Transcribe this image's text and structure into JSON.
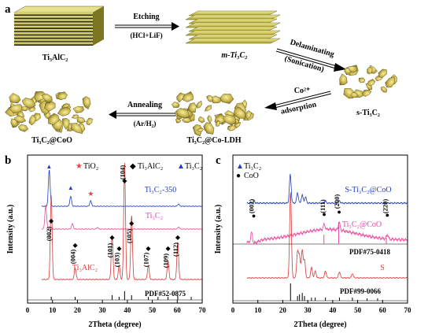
{
  "panel_a": {
    "label": "a",
    "start": "Ti₃AlC₂",
    "step1_top": "Etching",
    "step1_bottom": "(HCl+LiF)",
    "m_product": "m-Ti₃C₂",
    "step2_top": "Delaminating",
    "step2_bottom": "(Sonication)",
    "s_product": "s-Ti₃C₂",
    "step3_top": "Co²⁺",
    "step3_bottom": "adsorption",
    "ldh_product": "Ti₃C₂@Co-LDH",
    "step4_top": "Annealing",
    "step4_bottom": "(Ar/H₂)",
    "final_product": "Ti₃C₂@CoO"
  },
  "chart_data": [
    {
      "panel": "b",
      "type": "line",
      "xlabel": "2Theta (degree)",
      "ylabel": "Intensity (a.u.)",
      "xlim": [
        0,
        70
      ],
      "xticks": [
        "0",
        "10",
        "20",
        "30",
        "40",
        "50",
        "60",
        "70"
      ],
      "legend": [
        {
          "marker": "★",
          "label": "TiO₂",
          "color": "#e8463c"
        },
        {
          "marker": "◆",
          "label": "Ti₃AlC₂",
          "color": "#000000"
        },
        {
          "marker": "▲",
          "label": "Ti₃C₂",
          "color": "#1f3cc4"
        }
      ],
      "series": [
        {
          "name": "Ti₃C₂-350",
          "color": "#1f3cc4",
          "peaks": [
            [
              8.7,
              0.8
            ],
            [
              17.3,
              0.22
            ],
            [
              25.3,
              0.12
            ],
            [
              60.5,
              0.05
            ]
          ]
        },
        {
          "name": "Ti₃C₂",
          "color": "#e8479e",
          "peaks": [
            [
              7.3,
              0.55
            ],
            [
              18.0,
              0.12
            ],
            [
              28.0,
              0.04
            ],
            [
              60.6,
              0.05
            ]
          ]
        },
        {
          "name": "Ti₃AlC₂",
          "color": "#d63a3a",
          "peaks": [
            [
              9.5,
              0.72
            ],
            [
              19.1,
              0.1
            ],
            [
              33.9,
              0.38
            ],
            [
              36.7,
              0.12
            ],
            [
              38.9,
              1.0
            ],
            [
              41.7,
              0.55
            ],
            [
              48.4,
              0.12
            ],
            [
              56.3,
              0.16
            ],
            [
              60.2,
              0.32
            ]
          ]
        }
      ],
      "peak_labels": [
        "(002)",
        "(004)",
        "(101)",
        "(103)",
        "(104)",
        "(105)",
        "(107)",
        "(109)",
        "(112)"
      ],
      "reference": {
        "label": "PDF#52-0875",
        "x": [
          9.5,
          19.1,
          33.9,
          36.7,
          38.9,
          41.7,
          48.4,
          52.3,
          56.3,
          60.2,
          65.6
        ]
      }
    },
    {
      "panel": "c",
      "type": "line",
      "xlabel": "2Theta (degree)",
      "ylabel": "Intensity (a.u.)",
      "xlim": [
        0,
        70
      ],
      "xticks": [
        "0",
        "10",
        "20",
        "30",
        "40",
        "50",
        "60",
        "70"
      ],
      "legend": [
        {
          "marker": "▲",
          "label": "Ti₃C₂",
          "color": "#1f3cc4"
        },
        {
          "marker": "●",
          "label": "CoO",
          "color": "#000000"
        }
      ],
      "series": [
        {
          "name": "S-Ti₃C₂@CoO",
          "color": "#1f3cc4",
          "peaks": [
            [
              8.4,
              0.05
            ],
            [
              23.0,
              0.7
            ],
            [
              25.9,
              0.25
            ],
            [
              27.8,
              0.2
            ],
            [
              29.1,
              0.15
            ],
            [
              36.9,
              0.05
            ],
            [
              42.6,
              0.06
            ]
          ]
        },
        {
          "name": "Ti₃C₂@CoO",
          "color": "#e8479e",
          "peaks": [
            [
              7.5,
              0.25
            ],
            [
              36.6,
              0.12
            ],
            [
              42.6,
              0.18
            ],
            [
              61.9,
              0.1
            ]
          ]
        },
        {
          "name": "S",
          "color": "#d63a3a",
          "peaks": [
            [
              23.1,
              1.0
            ],
            [
              25.9,
              0.3
            ],
            [
              26.7,
              0.25
            ],
            [
              27.8,
              0.32
            ],
            [
              28.7,
              0.2
            ],
            [
              31.5,
              0.12
            ],
            [
              33.0,
              0.08
            ],
            [
              37.1,
              0.08
            ],
            [
              42.7,
              0.07
            ],
            [
              47.9,
              0.05
            ]
          ]
        }
      ],
      "peak_labels": [
        "(002)",
        "(111)",
        "(200)",
        "(220)"
      ],
      "reference_1": {
        "label": "PDF#75-0418",
        "x": [
          36.5,
          42.4,
          61.5
        ]
      },
      "reference_2": {
        "label": "PDF#99-0066",
        "x": [
          23.1,
          25.9,
          26.7,
          27.8,
          28.7,
          31.5,
          33.0,
          37.1,
          42.7,
          47.9,
          53.8,
          58.0
        ]
      }
    }
  ]
}
